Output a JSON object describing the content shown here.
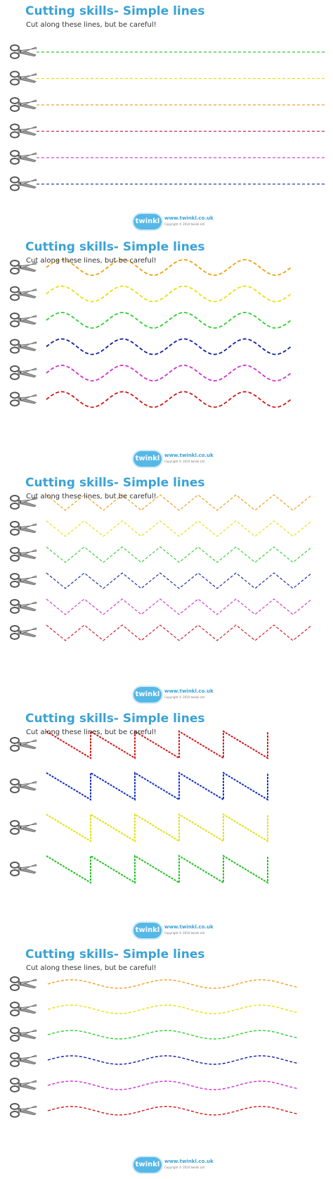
{
  "pages": [
    {
      "title": "Cutting skills- Simple lines",
      "subtitle": "Cut along these lines, but be careful!",
      "pattern": "straight",
      "line_colors": [
        "#2ec82e",
        "#e0e010",
        "#f0a020",
        "#c03060",
        "#e040d0",
        "#3040a0"
      ],
      "footer_url": "www.twinkl.co.uk",
      "footer_copyright": "Copyright © 2010 twinkl Ltd",
      "logo_text": "twinkl"
    },
    {
      "title": "Cutting skills- Simple lines",
      "subtitle": "Cut along these lines, but be careful!",
      "pattern": "wave",
      "line_colors": [
        "#f0a010",
        "#e8e010",
        "#30d030",
        "#1020a0",
        "#d030d0",
        "#d01818"
      ],
      "footer_url": "www.twinkl.co.uk",
      "footer_copyright": "Copyright © 2010 twinkl Ltd",
      "logo_text": "twinkl"
    },
    {
      "title": "Cutting skills- Simple lines",
      "subtitle": "Cut along these lines, but be careful!",
      "pattern": "zigzag",
      "line_colors": [
        "#f0a020",
        "#e8e020",
        "#40d040",
        "#2030a0",
        "#d040d0",
        "#d02030"
      ],
      "footer_url": "www.twinkl.co.uk",
      "footer_copyright": "Copyright © 2010 twinkl Ltd",
      "logo_text": "twinkl"
    },
    {
      "title": "Cutting skills- Simple lines",
      "subtitle": "Cut along these lines, but be careful!",
      "pattern": "sawtooth",
      "line_colors": [
        "#d01818",
        "#1030c0",
        "#e0e010",
        "#20c020"
      ],
      "footer_url": "www.twinkl.co.uk",
      "footer_copyright": "Copyright © 2010 twinkl Ltd",
      "logo_text": "twinkl"
    },
    {
      "title": "Cutting skills- Simple lines",
      "subtitle": "Cut along these lines, but be careful!",
      "pattern": "gentle-wave",
      "line_colors": [
        "#f0a020",
        "#e8e010",
        "#30d030",
        "#1020a0",
        "#d030d0",
        "#d01818"
      ],
      "footer_url": "www.twinkl.co.uk",
      "footer_copyright": "Copyright © 2010 twinkl Ltd",
      "logo_text": "twinkl"
    }
  ]
}
